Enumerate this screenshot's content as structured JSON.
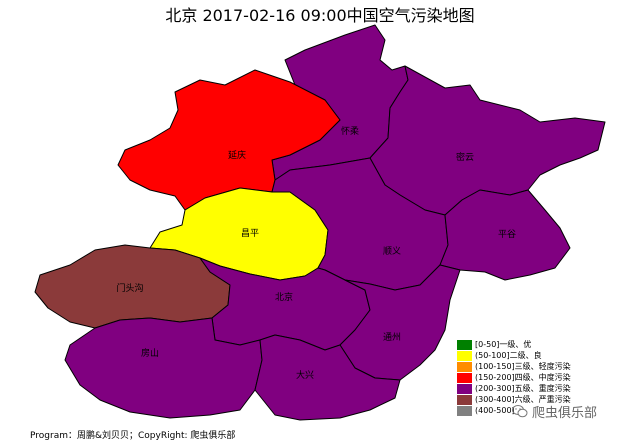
{
  "title": "北京 2017-02-16 09:00中国空气污染地图",
  "colors": {
    "level1": "#008000",
    "level2": "#ffff00",
    "level3": "#ff8c00",
    "level4": "#ff0000",
    "level5": "#800080",
    "level6": "#8b3a3a",
    "level7": "#808080"
  },
  "districts": [
    {
      "id": "yanqing",
      "name": "延庆",
      "level": "level4"
    },
    {
      "id": "huairou",
      "name": "怀柔",
      "level": "level5"
    },
    {
      "id": "miyun",
      "name": "密云",
      "level": "level5"
    },
    {
      "id": "changping",
      "name": "昌平",
      "level": "level2"
    },
    {
      "id": "shunyi",
      "name": "顺义",
      "level": "level5"
    },
    {
      "id": "pinggu",
      "name": "平谷",
      "level": "level5"
    },
    {
      "id": "mentougou",
      "name": "门头沟",
      "level": "level6"
    },
    {
      "id": "beijing",
      "name": "北京",
      "level": "level5"
    },
    {
      "id": "tongzhou",
      "name": "通州",
      "level": "level5"
    },
    {
      "id": "fangshan",
      "name": "房山",
      "level": "level5"
    },
    {
      "id": "daxing",
      "name": "大兴",
      "level": "level5"
    }
  ],
  "legend": [
    {
      "label": "[0-50]一级、优",
      "color": "level1"
    },
    {
      "label": "(50-100]二级、良",
      "color": "level2"
    },
    {
      "label": "(100-150]三级、轻度污染",
      "color": "level3"
    },
    {
      "label": "(150-200]四级、中度污染",
      "color": "level4"
    },
    {
      "label": "(200-300]五级、重度污染",
      "color": "level5"
    },
    {
      "label": "(300-400]六级、严重污染",
      "color": "level6"
    },
    {
      "label": "(400-500]",
      "color": "level7"
    }
  ],
  "footer": "Program：周鹏&刘贝贝；CopyRight: 爬虫俱乐部",
  "watermark": "爬虫俱乐部",
  "watermark_icon": "wechat-icon"
}
